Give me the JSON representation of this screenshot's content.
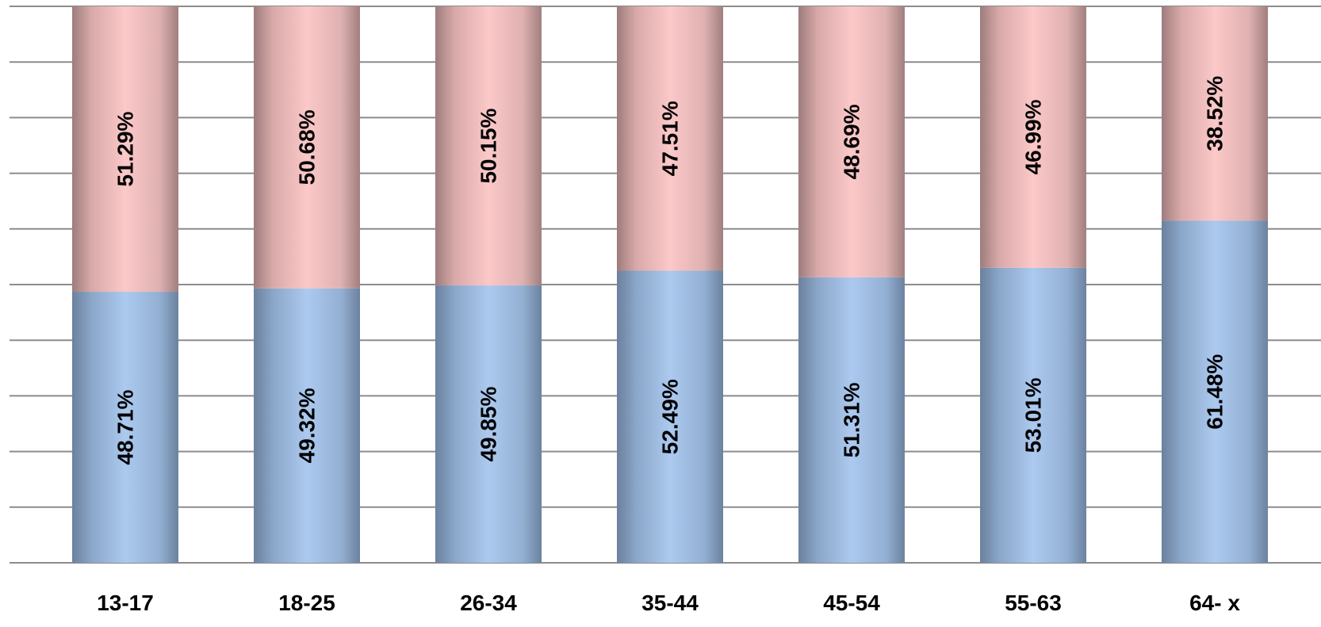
{
  "chart_data": {
    "type": "bar",
    "stacked": true,
    "normalized_to_percent": true,
    "categories": [
      "13-17",
      "18-25",
      "26-34",
      "35-44",
      "45-54",
      "55-63",
      "64- x"
    ],
    "series": [
      {
        "values": [
          48.71,
          49.32,
          49.85,
          52.49,
          51.31,
          53.01,
          61.48
        ],
        "labels": [
          "48.71%",
          "49.32%",
          "49.85%",
          "52.49%",
          "51.31%",
          "53.01%",
          "61.48%"
        ],
        "color": "#a9c8ec"
      },
      {
        "values": [
          51.29,
          50.68,
          50.15,
          47.51,
          48.69,
          46.99,
          38.52
        ],
        "labels": [
          "51.29%",
          "50.68%",
          "50.15%",
          "47.51%",
          "48.69%",
          "46.99%",
          "38.52%"
        ],
        "color": "#f8c6c6"
      }
    ],
    "ylim": [
      0,
      100
    ],
    "grid": true,
    "legend": "none",
    "title": "",
    "xlabel": "",
    "ylabel": ""
  }
}
